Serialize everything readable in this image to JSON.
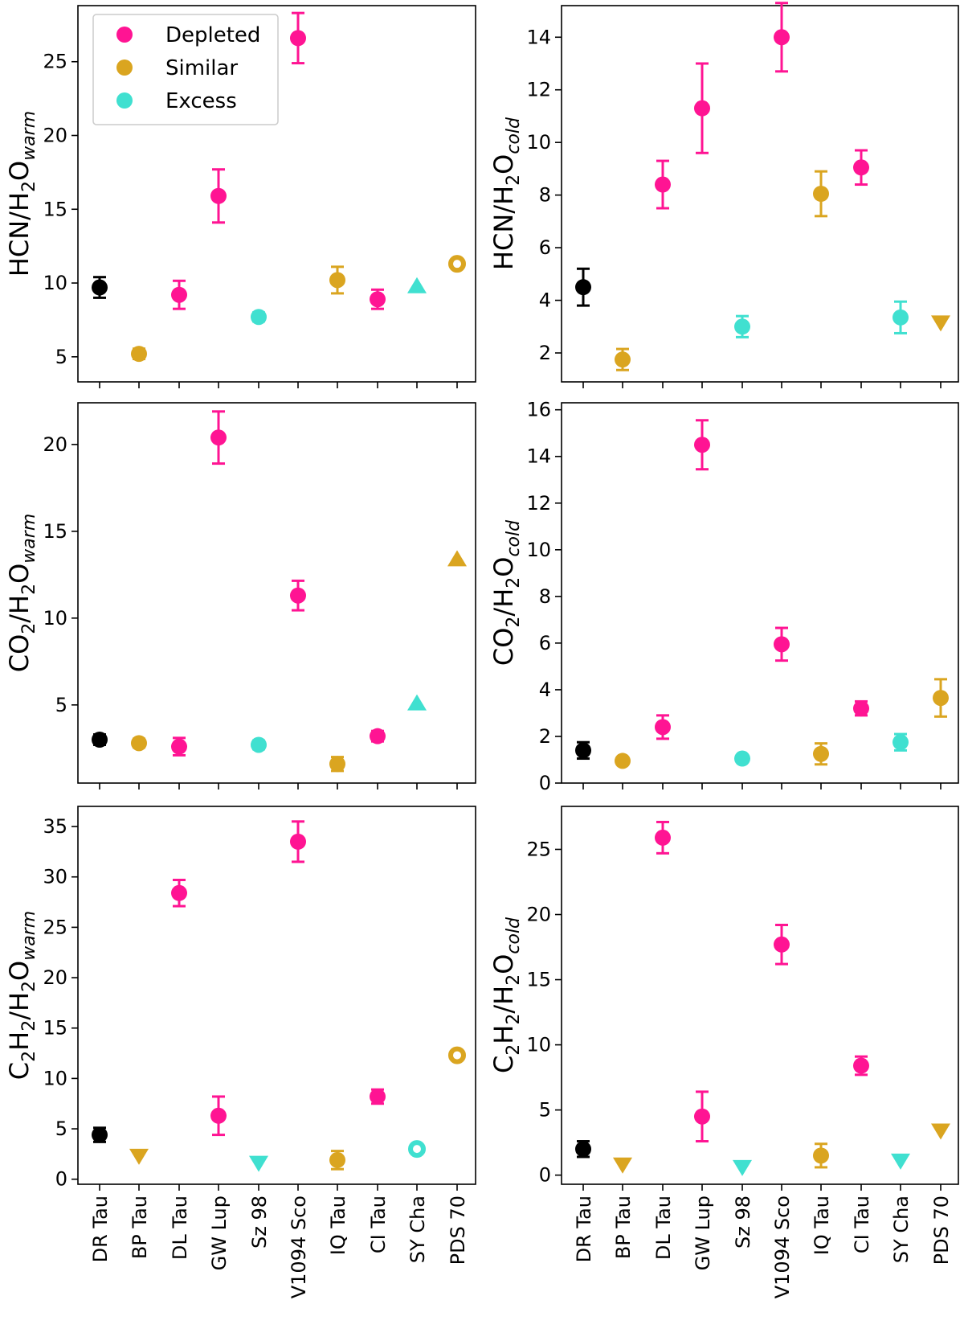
{
  "colors": {
    "Depleted": "#ff1493",
    "Similar": "#daa520",
    "Excess": "#40e0d0",
    "reference": "#000000"
  },
  "legend": [
    {
      "label": "Depleted",
      "group": "Depleted"
    },
    {
      "label": "Similar",
      "group": "Similar"
    },
    {
      "label": "Excess",
      "group": "Excess"
    }
  ],
  "chart_data": [
    {
      "type": "scatter",
      "id": "hcn-warm",
      "ylabel_main": "HCN/H",
      "ylabel_sub": "2",
      "ylabel_main2": "O",
      "ylabel_italic_sub": "warm",
      "categories": [
        "DR Tau",
        "BP Tau",
        "DL Tau",
        "GW Lup",
        "Sz 98",
        "V1094 Sco",
        "IQ Tau",
        "CI Tau",
        "SY Cha",
        "PDS 70"
      ],
      "ylim": [
        3.3,
        28.8
      ],
      "yticks": [
        5,
        10,
        15,
        20,
        25
      ],
      "show_xticklabels": false,
      "points": [
        {
          "cat": "DR Tau",
          "y": 9.7,
          "err": 0.7,
          "group": "reference",
          "marker": "circle"
        },
        {
          "cat": "BP Tau",
          "y": 5.2,
          "err": 0.35,
          "group": "Similar",
          "marker": "circle"
        },
        {
          "cat": "DL Tau",
          "y": 9.2,
          "err": 0.95,
          "group": "Depleted",
          "marker": "circle"
        },
        {
          "cat": "GW Lup",
          "y": 15.9,
          "err": 1.8,
          "group": "Depleted",
          "marker": "circle"
        },
        {
          "cat": "Sz 98",
          "y": 7.7,
          "err": 0.3,
          "group": "Excess",
          "marker": "circle"
        },
        {
          "cat": "V1094 Sco",
          "y": 26.6,
          "err": 1.7,
          "group": "Depleted",
          "marker": "circle"
        },
        {
          "cat": "IQ Tau",
          "y": 10.2,
          "err": 0.9,
          "group": "Similar",
          "marker": "circle"
        },
        {
          "cat": "CI Tau",
          "y": 8.9,
          "err": 0.65,
          "group": "Depleted",
          "marker": "circle"
        },
        {
          "cat": "SY Cha",
          "y": 9.8,
          "group": "Excess",
          "marker": "triangle-up"
        },
        {
          "cat": "PDS 70",
          "y": 11.3,
          "group": "Similar",
          "marker": "open-circle"
        }
      ]
    },
    {
      "type": "scatter",
      "id": "hcn-cold",
      "ylabel_main": "HCN/H",
      "ylabel_sub": "2",
      "ylabel_main2": "O",
      "ylabel_italic_sub": "cold",
      "categories": [
        "DR Tau",
        "BP Tau",
        "DL Tau",
        "GW Lup",
        "Sz 98",
        "V1094 Sco",
        "IQ Tau",
        "CI Tau",
        "SY Cha",
        "PDS 70"
      ],
      "ylim": [
        0.9,
        15.2
      ],
      "yticks": [
        2,
        4,
        6,
        8,
        10,
        12,
        14
      ],
      "show_xticklabels": false,
      "points": [
        {
          "cat": "DR Tau",
          "y": 4.5,
          "err": 0.7,
          "group": "reference",
          "marker": "circle"
        },
        {
          "cat": "BP Tau",
          "y": 1.75,
          "err": 0.4,
          "group": "Similar",
          "marker": "circle"
        },
        {
          "cat": "DL Tau",
          "y": 8.4,
          "err": 0.9,
          "group": "Depleted",
          "marker": "circle"
        },
        {
          "cat": "GW Lup",
          "y": 11.3,
          "err": 1.7,
          "group": "Depleted",
          "marker": "circle"
        },
        {
          "cat": "Sz 98",
          "y": 3.0,
          "err": 0.4,
          "group": "Excess",
          "marker": "circle"
        },
        {
          "cat": "V1094 Sco",
          "y": 14.0,
          "err": 1.3,
          "group": "Depleted",
          "marker": "circle"
        },
        {
          "cat": "IQ Tau",
          "y": 8.05,
          "err": 0.85,
          "group": "Similar",
          "marker": "circle"
        },
        {
          "cat": "CI Tau",
          "y": 9.05,
          "err": 0.65,
          "group": "Depleted",
          "marker": "circle"
        },
        {
          "cat": "SY Cha",
          "y": 3.35,
          "err": 0.6,
          "group": "Excess",
          "marker": "circle"
        },
        {
          "cat": "PDS 70",
          "y": 3.15,
          "group": "Similar",
          "marker": "triangle-down"
        }
      ]
    },
    {
      "type": "scatter",
      "id": "co2-warm",
      "ylabel_main": "CO",
      "ylabel_sub": "2",
      "ylabel_main2": "/H",
      "ylabel_sub2": "2",
      "ylabel_main3": "O",
      "ylabel_italic_sub": "warm",
      "categories": [
        "DR Tau",
        "BP Tau",
        "DL Tau",
        "GW Lup",
        "Sz 98",
        "V1094 Sco",
        "IQ Tau",
        "CI Tau",
        "SY Cha",
        "PDS 70"
      ],
      "ylim": [
        0.5,
        22.4
      ],
      "yticks": [
        5,
        10,
        15,
        20
      ],
      "show_xticklabels": false,
      "points": [
        {
          "cat": "DR Tau",
          "y": 3.0,
          "err": 0.3,
          "group": "reference",
          "marker": "circle"
        },
        {
          "cat": "BP Tau",
          "y": 2.8,
          "err": 0.25,
          "group": "Similar",
          "marker": "circle"
        },
        {
          "cat": "DL Tau",
          "y": 2.6,
          "err": 0.5,
          "group": "Depleted",
          "marker": "circle"
        },
        {
          "cat": "GW Lup",
          "y": 20.4,
          "err": 1.5,
          "group": "Depleted",
          "marker": "circle"
        },
        {
          "cat": "Sz 98",
          "y": 2.7,
          "err": 0.25,
          "group": "Excess",
          "marker": "circle"
        },
        {
          "cat": "V1094 Sco",
          "y": 11.3,
          "err": 0.85,
          "group": "Depleted",
          "marker": "circle"
        },
        {
          "cat": "IQ Tau",
          "y": 1.6,
          "err": 0.4,
          "group": "Similar",
          "marker": "circle"
        },
        {
          "cat": "CI Tau",
          "y": 3.2,
          "err": 0.3,
          "group": "Depleted",
          "marker": "circle"
        },
        {
          "cat": "SY Cha",
          "y": 5.1,
          "group": "Excess",
          "marker": "triangle-up"
        },
        {
          "cat": "PDS 70",
          "y": 13.4,
          "group": "Similar",
          "marker": "triangle-up"
        }
      ]
    },
    {
      "type": "scatter",
      "id": "co2-cold",
      "ylabel_main": "CO",
      "ylabel_sub": "2",
      "ylabel_main2": "/H",
      "ylabel_sub2": "2",
      "ylabel_main3": "O",
      "ylabel_italic_sub": "cold",
      "categories": [
        "DR Tau",
        "BP Tau",
        "DL Tau",
        "GW Lup",
        "Sz 98",
        "V1094 Sco",
        "IQ Tau",
        "CI Tau",
        "SY Cha",
        "PDS 70"
      ],
      "ylim": [
        0,
        16.3
      ],
      "yticks": [
        0,
        2,
        4,
        6,
        8,
        10,
        12,
        14,
        16
      ],
      "show_xticklabels": false,
      "points": [
        {
          "cat": "DR Tau",
          "y": 1.4,
          "err": 0.35,
          "group": "reference",
          "marker": "circle"
        },
        {
          "cat": "BP Tau",
          "y": 0.95,
          "err": 0.15,
          "group": "Similar",
          "marker": "circle"
        },
        {
          "cat": "DL Tau",
          "y": 2.4,
          "err": 0.5,
          "group": "Depleted",
          "marker": "circle"
        },
        {
          "cat": "GW Lup",
          "y": 14.5,
          "err": 1.05,
          "group": "Depleted",
          "marker": "circle"
        },
        {
          "cat": "Sz 98",
          "y": 1.05,
          "err": 0.15,
          "group": "Excess",
          "marker": "circle"
        },
        {
          "cat": "V1094 Sco",
          "y": 5.95,
          "err": 0.7,
          "group": "Depleted",
          "marker": "circle"
        },
        {
          "cat": "IQ Tau",
          "y": 1.25,
          "err": 0.45,
          "group": "Similar",
          "marker": "circle"
        },
        {
          "cat": "CI Tau",
          "y": 3.2,
          "err": 0.3,
          "group": "Depleted",
          "marker": "circle"
        },
        {
          "cat": "SY Cha",
          "y": 1.75,
          "err": 0.35,
          "group": "Excess",
          "marker": "circle"
        },
        {
          "cat": "PDS 70",
          "y": 3.65,
          "err": 0.8,
          "group": "Similar",
          "marker": "circle"
        }
      ]
    },
    {
      "type": "scatter",
      "id": "c2h2-warm",
      "ylabel_main": "C",
      "ylabel_sub": "2",
      "ylabel_main2": "H",
      "ylabel_sub2": "2",
      "ylabel_main3": "/H",
      "ylabel_sub3": "2",
      "ylabel_main4": "O",
      "ylabel_italic_sub": "warm",
      "categories": [
        "DR Tau",
        "BP Tau",
        "DL Tau",
        "GW Lup",
        "Sz 98",
        "V1094 Sco",
        "IQ Tau",
        "CI Tau",
        "SY Cha",
        "PDS 70"
      ],
      "ylim": [
        -0.5,
        37.0
      ],
      "yticks": [
        0,
        5,
        10,
        15,
        20,
        25,
        30,
        35
      ],
      "show_xticklabels": true,
      "points": [
        {
          "cat": "DR Tau",
          "y": 4.4,
          "err": 0.7,
          "group": "reference",
          "marker": "circle"
        },
        {
          "cat": "BP Tau",
          "y": 2.3,
          "group": "Similar",
          "marker": "triangle-down"
        },
        {
          "cat": "DL Tau",
          "y": 28.4,
          "err": 1.3,
          "group": "Depleted",
          "marker": "circle"
        },
        {
          "cat": "GW Lup",
          "y": 6.3,
          "err": 1.9,
          "group": "Depleted",
          "marker": "circle"
        },
        {
          "cat": "Sz 98",
          "y": 1.6,
          "group": "Excess",
          "marker": "triangle-down"
        },
        {
          "cat": "V1094 Sco",
          "y": 33.5,
          "err": 2.0,
          "group": "Depleted",
          "marker": "circle"
        },
        {
          "cat": "IQ Tau",
          "y": 1.9,
          "err": 0.9,
          "group": "Similar",
          "marker": "circle"
        },
        {
          "cat": "CI Tau",
          "y": 8.2,
          "err": 0.7,
          "group": "Depleted",
          "marker": "circle"
        },
        {
          "cat": "SY Cha",
          "y": 3.0,
          "group": "Excess",
          "marker": "open-circle"
        },
        {
          "cat": "PDS 70",
          "y": 12.3,
          "group": "Similar",
          "marker": "open-circle"
        }
      ]
    },
    {
      "type": "scatter",
      "id": "c2h2-cold",
      "ylabel_main": "C",
      "ylabel_sub": "2",
      "ylabel_main2": "H",
      "ylabel_sub2": "2",
      "ylabel_main3": "/H",
      "ylabel_sub3": "2",
      "ylabel_main4": "O",
      "ylabel_italic_sub": "cold",
      "categories": [
        "DR Tau",
        "BP Tau",
        "DL Tau",
        "GW Lup",
        "Sz 98",
        "V1094 Sco",
        "IQ Tau",
        "CI Tau",
        "SY Cha",
        "PDS 70"
      ],
      "ylim": [
        -0.7,
        28.3
      ],
      "yticks": [
        0,
        5,
        10,
        15,
        20,
        25
      ],
      "show_xticklabels": true,
      "points": [
        {
          "cat": "DR Tau",
          "y": 2.0,
          "err": 0.6,
          "group": "reference",
          "marker": "circle"
        },
        {
          "cat": "BP Tau",
          "y": 0.8,
          "group": "Similar",
          "marker": "triangle-down"
        },
        {
          "cat": "DL Tau",
          "y": 25.9,
          "err": 1.2,
          "group": "Depleted",
          "marker": "circle"
        },
        {
          "cat": "GW Lup",
          "y": 4.5,
          "err": 1.9,
          "group": "Depleted",
          "marker": "circle"
        },
        {
          "cat": "Sz 98",
          "y": 0.6,
          "group": "Excess",
          "marker": "triangle-down"
        },
        {
          "cat": "V1094 Sco",
          "y": 17.7,
          "err": 1.5,
          "group": "Depleted",
          "marker": "circle"
        },
        {
          "cat": "IQ Tau",
          "y": 1.5,
          "err": 0.9,
          "group": "Similar",
          "marker": "circle"
        },
        {
          "cat": "CI Tau",
          "y": 8.4,
          "err": 0.7,
          "group": "Depleted",
          "marker": "circle"
        },
        {
          "cat": "SY Cha",
          "y": 1.1,
          "group": "Excess",
          "marker": "triangle-down"
        },
        {
          "cat": "PDS 70",
          "y": 3.4,
          "group": "Similar",
          "marker": "triangle-down"
        }
      ]
    }
  ]
}
